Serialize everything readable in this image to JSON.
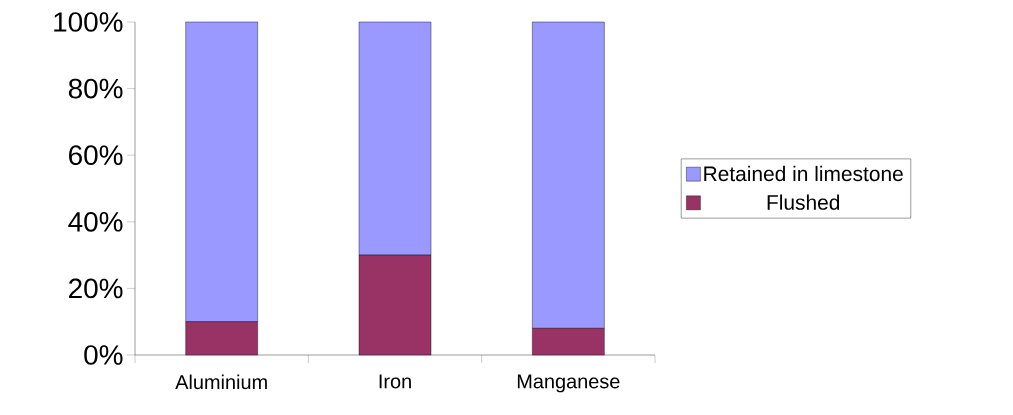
{
  "chart_data": {
    "type": "bar",
    "stacked": true,
    "categories": [
      "Aluminium",
      "Iron",
      "Manganese"
    ],
    "series": [
      {
        "name": "Flushed",
        "color": "#993366",
        "values": [
          10,
          30,
          8
        ]
      },
      {
        "name": "Retained in limestone",
        "color": "#9999ff",
        "values": [
          90,
          70,
          92
        ]
      }
    ],
    "ylim": [
      0,
      100
    ],
    "yticks": [
      {
        "value": 0,
        "label": "0%"
      },
      {
        "value": 20,
        "label": "20%"
      },
      {
        "value": 40,
        "label": "40%"
      },
      {
        "value": 60,
        "label": "60%"
      },
      {
        "value": 80,
        "label": "80%"
      },
      {
        "value": 100,
        "label": "100%"
      }
    ],
    "grid": false,
    "legend": "right"
  }
}
